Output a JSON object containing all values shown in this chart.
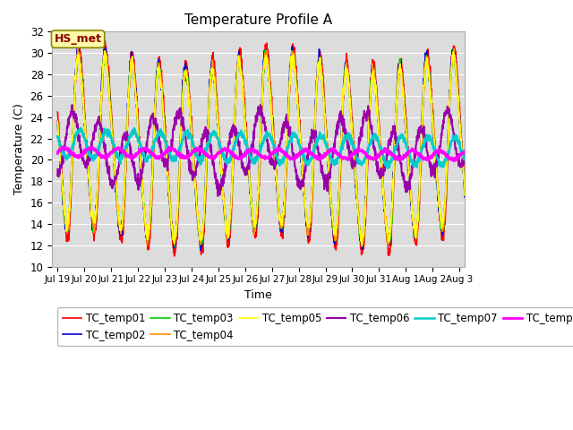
{
  "title": "Temperature Profile A",
  "xlabel": "Time",
  "ylabel": "Temperature (C)",
  "ylim": [
    10,
    32
  ],
  "background_color": "#dcdcdc",
  "figure_color": "#ffffff",
  "annotation_text": "HS_met",
  "annotation_color": "#8B0000",
  "annotation_bg": "#FFFAAA",
  "series_colors": {
    "TC_temp01": "#FF0000",
    "TC_temp02": "#0000DD",
    "TC_temp03": "#00CC00",
    "TC_temp04": "#FF8C00",
    "TC_temp05": "#FFFF00",
    "TC_temp06": "#9900AA",
    "TC_temp07": "#00CCCC",
    "TC_temp08": "#FF00FF"
  },
  "series_linewidths": {
    "TC_temp01": 1.2,
    "TC_temp02": 1.2,
    "TC_temp03": 1.2,
    "TC_temp04": 1.2,
    "TC_temp05": 1.2,
    "TC_temp06": 1.5,
    "TC_temp07": 1.8,
    "TC_temp08": 2.0
  },
  "x_tick_labels": [
    "Jul 19",
    "Jul 20",
    "Jul 21",
    "Jul 22",
    "Jul 23",
    "Jul 24",
    "Jul 25",
    "Jul 26",
    "Jul 27",
    "Jul 28",
    "Jul 29",
    "Jul 30",
    "Jul 31",
    "Aug 1",
    "Aug 2",
    "Aug 3"
  ],
  "x_tick_positions": [
    0,
    1,
    2,
    3,
    4,
    5,
    6,
    7,
    8,
    9,
    10,
    11,
    12,
    13,
    14,
    15
  ],
  "grid_color": "#ffffff",
  "yticks": [
    10,
    12,
    14,
    16,
    18,
    20,
    22,
    24,
    26,
    28,
    30,
    32
  ]
}
